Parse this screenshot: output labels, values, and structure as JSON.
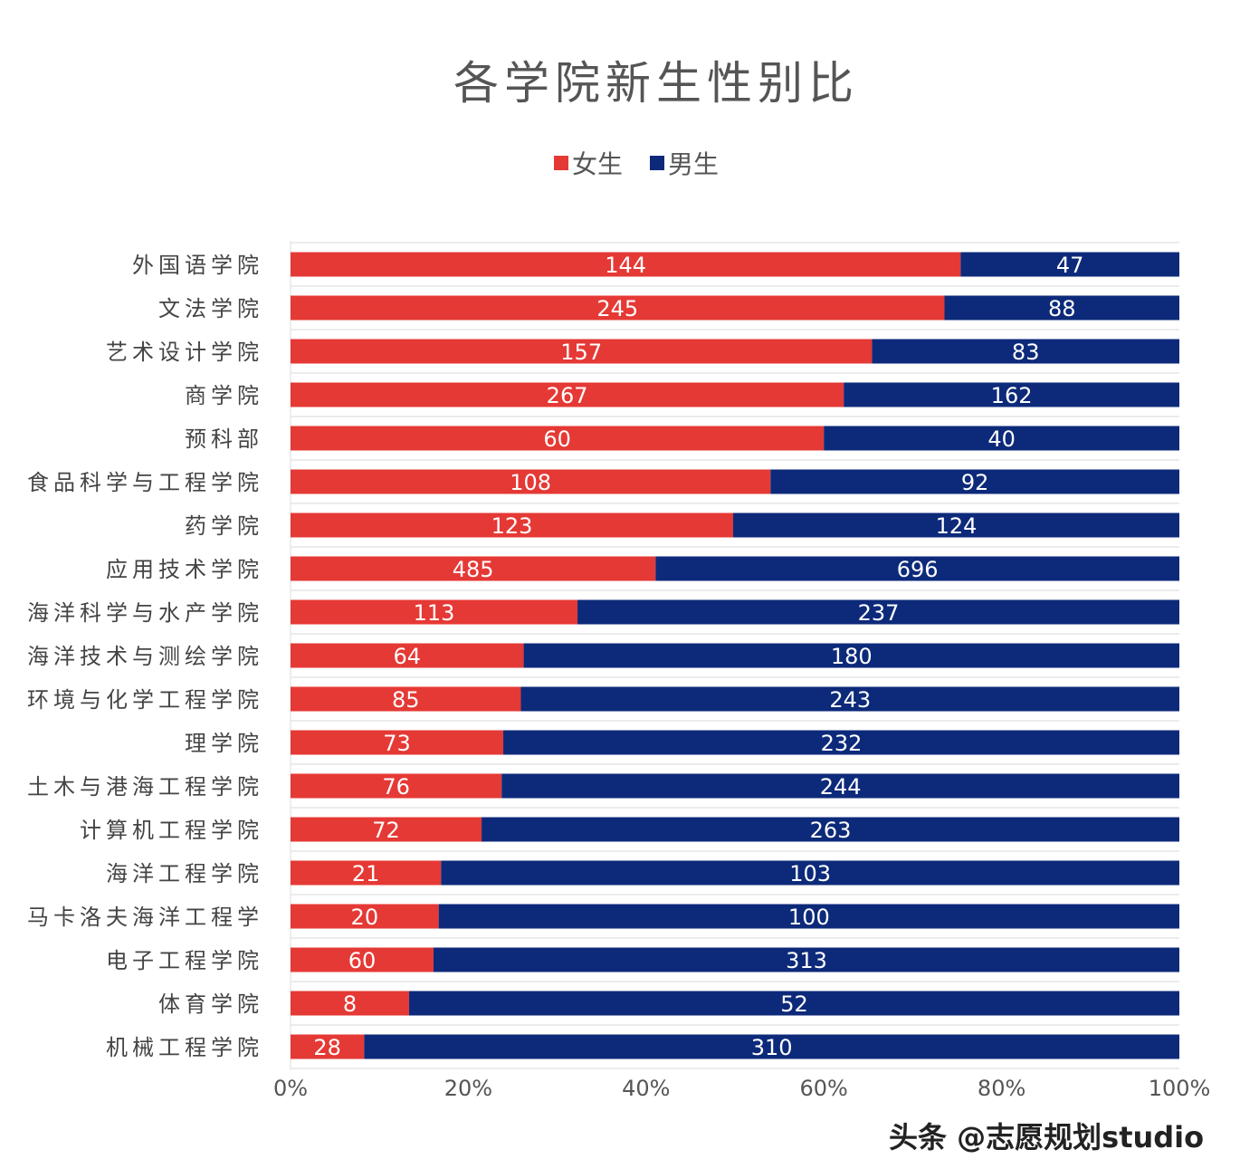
{
  "chart_data": {
    "type": "bar",
    "orientation": "horizontal",
    "stacking": "percent",
    "title": "各学院新生性别比",
    "legend_position": "top",
    "categories": [
      "外国语学院",
      "文法学院",
      "艺术设计学院",
      "商学院",
      "预科部",
      "食品科学与工程学院",
      "药学院",
      "应用技术学院",
      "海洋科学与水产学院",
      "海洋技术与测绘学院",
      "环境与化学工程学院",
      "理学院",
      "土木与港海工程学院",
      "计算机工程学院",
      "海洋工程学院",
      "马卡洛夫海洋工程学",
      "电子工程学院",
      "体育学院",
      "机械工程学院"
    ],
    "series": [
      {
        "name": "女生",
        "color": "#e53935",
        "values": [
          144,
          245,
          157,
          267,
          60,
          108,
          123,
          485,
          113,
          64,
          85,
          73,
          76,
          72,
          21,
          20,
          60,
          8,
          28
        ]
      },
      {
        "name": "男生",
        "color": "#0d2a7a",
        "values": [
          47,
          88,
          83,
          162,
          40,
          92,
          124,
          696,
          237,
          180,
          243,
          232,
          244,
          263,
          103,
          100,
          313,
          52,
          310
        ]
      }
    ],
    "xlim": [
      0,
      100
    ],
    "x_ticks": [
      "0%",
      "20%",
      "40%",
      "60%",
      "80%",
      "100%"
    ],
    "grid": false
  },
  "watermark": "头条 @志愿规划studio"
}
